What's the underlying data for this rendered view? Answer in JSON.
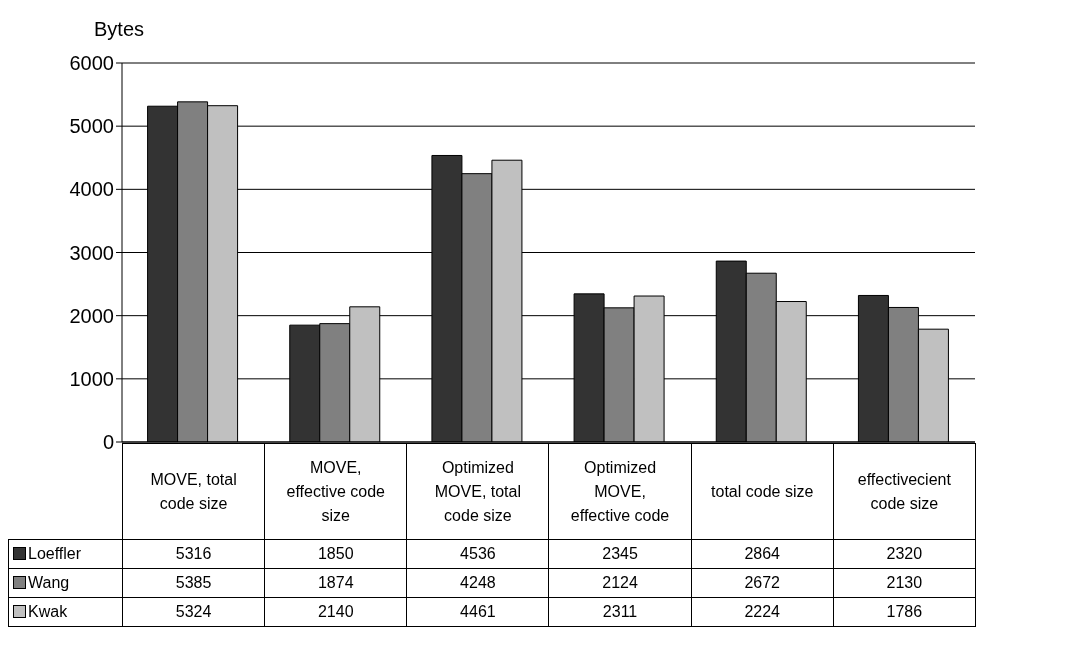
{
  "chart_data": {
    "type": "bar",
    "ylabel": "Bytes",
    "categories": [
      "MOVE, total code size",
      "MOVE, effective code size",
      "Optimized MOVE, total code size",
      "Optimized MOVE, effective code",
      "total code size",
      "effectivecient code size"
    ],
    "series": [
      {
        "name": "Loeffler",
        "color": "#333333",
        "values": [
          5316,
          1850,
          4536,
          2345,
          2864,
          2320
        ]
      },
      {
        "name": "Wang",
        "color": "#808080",
        "values": [
          5385,
          1874,
          4248,
          2124,
          2672,
          2130
        ]
      },
      {
        "name": "Kwak",
        "color": "#c0c0c0",
        "values": [
          5324,
          2140,
          4461,
          2311,
          2224,
          1786
        ]
      }
    ],
    "ylim": [
      0,
      6000
    ],
    "yticks": [
      0,
      1000,
      2000,
      3000,
      4000,
      5000,
      6000
    ],
    "grid": "y",
    "legend": "bottom",
    "data_labels": true
  }
}
